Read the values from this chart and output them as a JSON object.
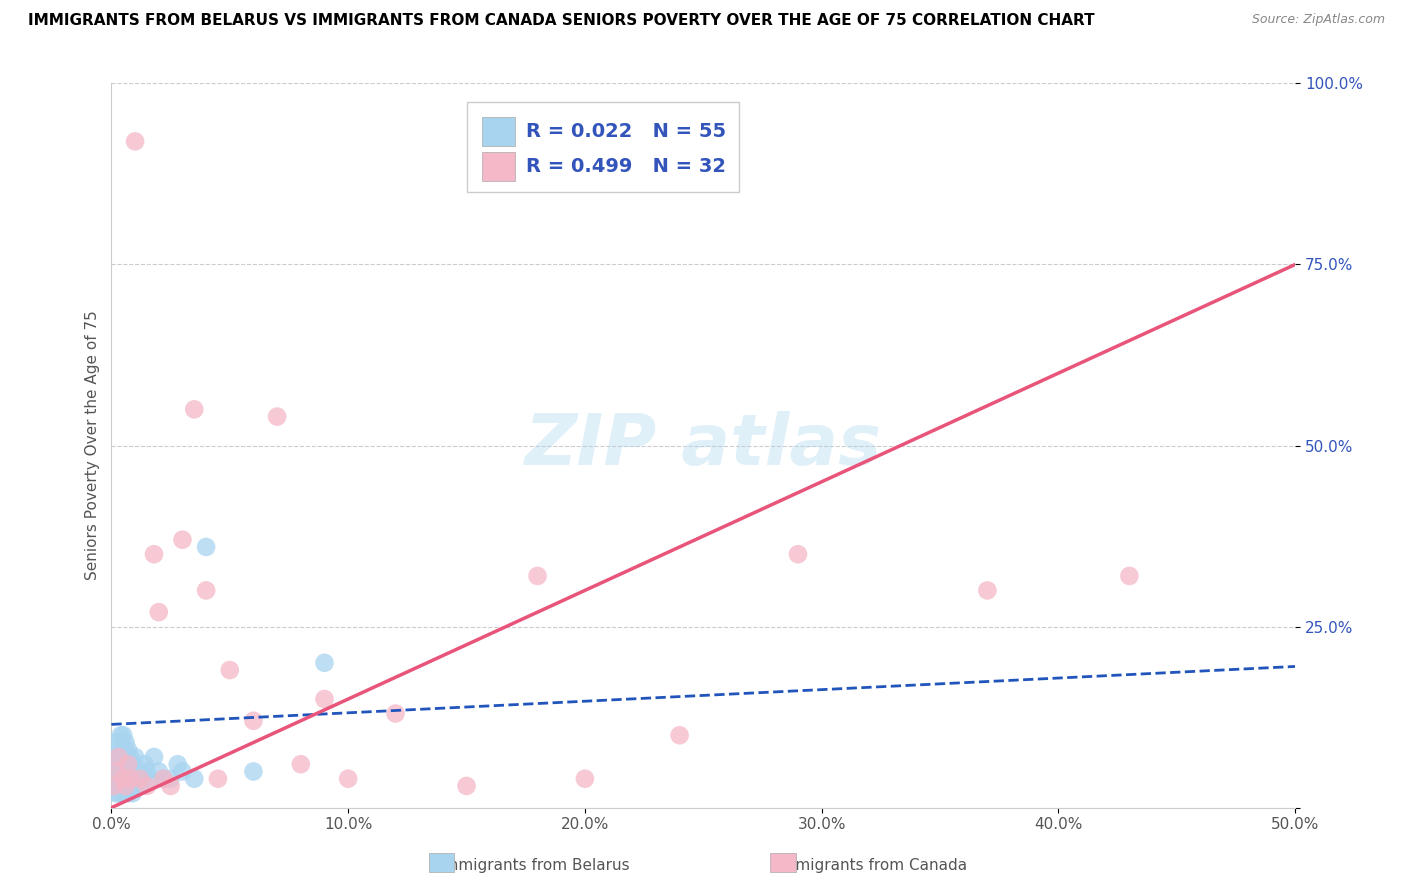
{
  "title": "IMMIGRANTS FROM BELARUS VS IMMIGRANTS FROM CANADA SENIORS POVERTY OVER THE AGE OF 75 CORRELATION CHART",
  "source": "Source: ZipAtlas.com",
  "ylabel": "Seniors Poverty Over the Age of 75",
  "xlim": [
    0,
    0.5
  ],
  "ylim": [
    0,
    1.0
  ],
  "xticks": [
    0,
    0.1,
    0.2,
    0.3,
    0.4,
    0.5
  ],
  "xticklabels": [
    "0.0%",
    "10.0%",
    "20.0%",
    "30.0%",
    "40.0%",
    "50.0%"
  ],
  "yticks": [
    0,
    0.25,
    0.5,
    0.75,
    1.0
  ],
  "yticklabels": [
    "",
    "25.0%",
    "50.0%",
    "75.0%",
    "100.0%"
  ],
  "legend_label1": "Immigrants from Belarus",
  "legend_label2": "Immigrants from Canada",
  "R1": 0.022,
  "N1": 55,
  "R2": 0.499,
  "N2": 32,
  "color_belarus": "#a8d4f0",
  "color_canada": "#f5b8c8",
  "color_line_belarus": "#2255bb",
  "color_line_canada": "#e8547a",
  "belarus_x": [
    0.001,
    0.001,
    0.001,
    0.002,
    0.002,
    0.002,
    0.002,
    0.003,
    0.003,
    0.003,
    0.003,
    0.003,
    0.004,
    0.004,
    0.004,
    0.004,
    0.005,
    0.005,
    0.005,
    0.005,
    0.005,
    0.006,
    0.006,
    0.006,
    0.006,
    0.007,
    0.007,
    0.007,
    0.007,
    0.008,
    0.008,
    0.008,
    0.009,
    0.009,
    0.009,
    0.01,
    0.01,
    0.01,
    0.011,
    0.012,
    0.012,
    0.013,
    0.014,
    0.015,
    0.016,
    0.018,
    0.02,
    0.022,
    0.025,
    0.028,
    0.03,
    0.035,
    0.04,
    0.06,
    0.09
  ],
  "belarus_y": [
    0.04,
    0.06,
    0.08,
    0.02,
    0.04,
    0.05,
    0.09,
    0.03,
    0.05,
    0.06,
    0.07,
    0.02,
    0.03,
    0.05,
    0.07,
    0.1,
    0.02,
    0.04,
    0.06,
    0.08,
    0.1,
    0.03,
    0.05,
    0.07,
    0.09,
    0.02,
    0.04,
    0.06,
    0.08,
    0.03,
    0.05,
    0.07,
    0.02,
    0.04,
    0.06,
    0.03,
    0.05,
    0.07,
    0.04,
    0.03,
    0.05,
    0.04,
    0.06,
    0.05,
    0.04,
    0.07,
    0.05,
    0.04,
    0.04,
    0.06,
    0.05,
    0.04,
    0.36,
    0.05,
    0.2
  ],
  "canada_x": [
    0.001,
    0.002,
    0.003,
    0.005,
    0.006,
    0.007,
    0.008,
    0.01,
    0.012,
    0.015,
    0.018,
    0.02,
    0.022,
    0.025,
    0.03,
    0.035,
    0.04,
    0.045,
    0.05,
    0.06,
    0.07,
    0.08,
    0.09,
    0.1,
    0.12,
    0.15,
    0.18,
    0.2,
    0.24,
    0.29,
    0.37,
    0.43
  ],
  "canada_y": [
    0.03,
    0.05,
    0.07,
    0.04,
    0.03,
    0.06,
    0.04,
    0.92,
    0.04,
    0.03,
    0.35,
    0.27,
    0.04,
    0.03,
    0.37,
    0.55,
    0.3,
    0.04,
    0.19,
    0.12,
    0.54,
    0.06,
    0.15,
    0.04,
    0.13,
    0.03,
    0.32,
    0.04,
    0.1,
    0.35,
    0.3,
    0.32
  ]
}
